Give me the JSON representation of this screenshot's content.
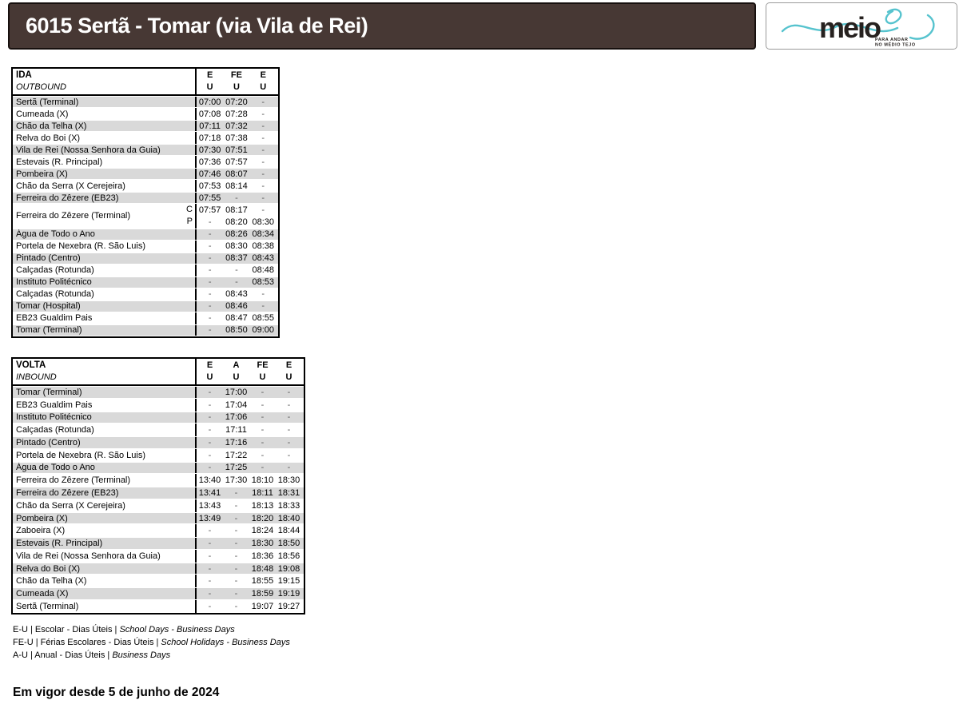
{
  "header": {
    "title": "6015 Sertã - Tomar (via Vila de Rei)",
    "bar_color": "#473834",
    "logo": {
      "brand": "meio",
      "tagline_line1": "PARA ANDAR",
      "tagline_line2": "NO MÉDIO TEJO",
      "accent_color": "#56c3ce",
      "text_color": "#26211f"
    }
  },
  "outbound": {
    "title": "IDA",
    "subtitle": "OUTBOUND",
    "service_row": [
      "E",
      "FE",
      "E"
    ],
    "period_row": [
      "U",
      "U",
      "U"
    ],
    "rows": [
      {
        "stop": "Sertã (Terminal)",
        "times": [
          "07:00",
          "07:20",
          "-"
        ]
      },
      {
        "stop": "Cumeada (X)",
        "times": [
          "07:08",
          "07:28",
          "-"
        ]
      },
      {
        "stop": "Chão da Telha (X)",
        "times": [
          "07:11",
          "07:32",
          "-"
        ]
      },
      {
        "stop": "Relva do Boi (X)",
        "times": [
          "07:18",
          "07:38",
          "-"
        ]
      },
      {
        "stop": "Vila de Rei (Nossa Senhora da Guia)",
        "times": [
          "07:30",
          "07:51",
          "-"
        ]
      },
      {
        "stop": "Estevais (R. Principal)",
        "times": [
          "07:36",
          "07:57",
          "-"
        ]
      },
      {
        "stop": "Pombeira (X)",
        "times": [
          "07:46",
          "08:07",
          "-"
        ]
      },
      {
        "stop": "Chão da Serra (X Cerejeira)",
        "times": [
          "07:53",
          "08:14",
          "-"
        ]
      },
      {
        "stop": "Ferreira do Zêzere (EB23)",
        "times": [
          "07:55",
          "-",
          "-"
        ]
      },
      {
        "stop": "Ferreira do Zêzere (Terminal)",
        "subrows": [
          {
            "label": "C",
            "times": [
              "07:57",
              "08:17",
              "-"
            ]
          },
          {
            "label": "P",
            "times": [
              "-",
              "08:20",
              "08:30"
            ]
          }
        ]
      },
      {
        "stop": "Água de Todo o Ano",
        "times": [
          "-",
          "08:26",
          "08:34"
        ]
      },
      {
        "stop": "Portela de Nexebra (R. São Luis)",
        "times": [
          "-",
          "08:30",
          "08:38"
        ]
      },
      {
        "stop": "Pintado (Centro)",
        "times": [
          "-",
          "08:37",
          "08:43"
        ]
      },
      {
        "stop": "Calçadas (Rotunda)",
        "times": [
          "-",
          "-",
          "08:48"
        ]
      },
      {
        "stop": "Instituto Politécnico",
        "times": [
          "-",
          "-",
          "08:53"
        ]
      },
      {
        "stop": "Calçadas (Rotunda)",
        "times": [
          "-",
          "08:43",
          "-"
        ]
      },
      {
        "stop": "Tomar (Hospital)",
        "times": [
          "-",
          "08:46",
          "-"
        ]
      },
      {
        "stop": "EB23 Gualdim Pais",
        "times": [
          "-",
          "08:47",
          "08:55"
        ]
      },
      {
        "stop": "Tomar (Terminal)",
        "times": [
          "-",
          "08:50",
          "09:00"
        ]
      }
    ]
  },
  "inbound": {
    "title": "VOLTA",
    "subtitle": "INBOUND",
    "service_row": [
      "E",
      "A",
      "FE",
      "E"
    ],
    "period_row": [
      "U",
      "U",
      "U",
      "U"
    ],
    "rows": [
      {
        "stop": "Tomar (Terminal)",
        "times": [
          "-",
          "17:00",
          "-",
          "-"
        ]
      },
      {
        "stop": "EB23 Gualdim Pais",
        "times": [
          "-",
          "17:04",
          "-",
          "-"
        ]
      },
      {
        "stop": "Instituto Politécnico",
        "times": [
          "-",
          "17:06",
          "-",
          "-"
        ]
      },
      {
        "stop": "Calçadas (Rotunda)",
        "times": [
          "-",
          "17:11",
          "-",
          "-"
        ]
      },
      {
        "stop": "Pintado (Centro)",
        "times": [
          "-",
          "17:16",
          "-",
          "-"
        ]
      },
      {
        "stop": "Portela de Nexebra (R. São Luis)",
        "times": [
          "-",
          "17:22",
          "-",
          "-"
        ]
      },
      {
        "stop": "Água de Todo o Ano",
        "times": [
          "-",
          "17:25",
          "-",
          "-"
        ]
      },
      {
        "stop": "Ferreira do Zêzere (Terminal)",
        "times": [
          "13:40",
          "17:30",
          "18:10",
          "18:30"
        ]
      },
      {
        "stop": "Ferreira do Zêzere (EB23)",
        "times": [
          "13:41",
          "-",
          "18:11",
          "18:31"
        ]
      },
      {
        "stop": "Chão da Serra (X Cerejeira)",
        "times": [
          "13:43",
          "-",
          "18:13",
          "18:33"
        ]
      },
      {
        "stop": "Pombeira (X)",
        "times": [
          "13:49",
          "-",
          "18:20",
          "18:40"
        ]
      },
      {
        "stop": "Zaboeira (X)",
        "times": [
          "-",
          "-",
          "18:24",
          "18:44"
        ]
      },
      {
        "stop": "Estevais (R. Principal)",
        "times": [
          "-",
          "-",
          "18:30",
          "18:50"
        ]
      },
      {
        "stop": "Vila de Rei (Nossa Senhora da Guia)",
        "times": [
          "-",
          "-",
          "18:36",
          "18:56"
        ]
      },
      {
        "stop": "Relva do Boi (X)",
        "times": [
          "-",
          "-",
          "18:48",
          "19:08"
        ]
      },
      {
        "stop": "Chão da Telha (X)",
        "times": [
          "-",
          "-",
          "18:55",
          "19:15"
        ]
      },
      {
        "stop": "Cumeada (X)",
        "times": [
          "-",
          "-",
          "18:59",
          "19:19"
        ]
      },
      {
        "stop": "Sertã (Terminal)",
        "times": [
          "-",
          "-",
          "19:07",
          "19:27"
        ]
      }
    ]
  },
  "legend": [
    {
      "text": "E-U | Escolar - Dias Úteis | ",
      "italic": "School Days - Business Days"
    },
    {
      "text": "FE-U | Férias Escolares - Dias Úteis | ",
      "italic": "School Holidays - Business Days"
    },
    {
      "text": "A-U | Anual - Dias Úteis | ",
      "italic": "Business Days"
    }
  ],
  "footer": {
    "effective_date": "Em vigor desde 5 de junho de 2024"
  },
  "colors": {
    "row_shade": "#d9d9d9",
    "border": "#000000",
    "header_bar": "#473834"
  }
}
